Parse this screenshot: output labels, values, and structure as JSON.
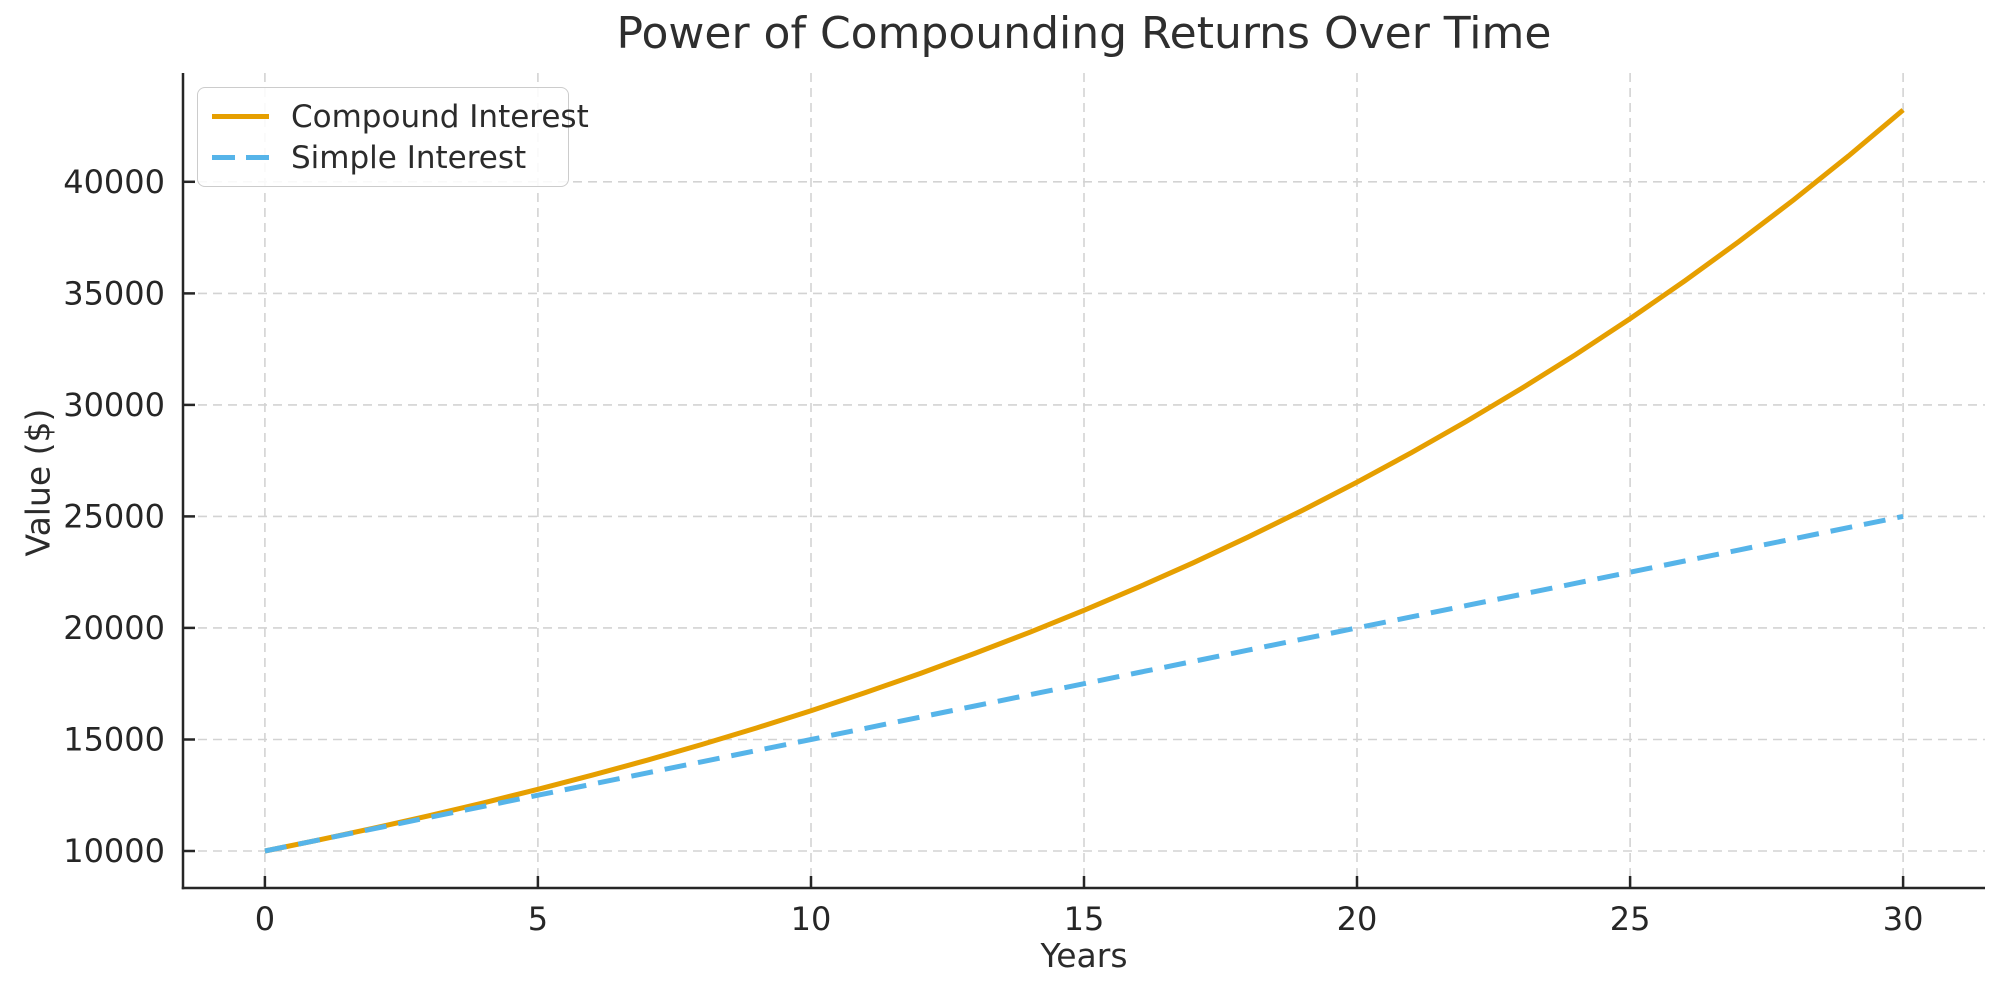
{
  "chart_data": {
    "type": "line",
    "title": "Power of Compounding Returns Over Time",
    "xlabel": "Years",
    "ylabel": "Value ($)",
    "x": [
      0,
      1,
      2,
      3,
      4,
      5,
      6,
      7,
      8,
      9,
      10,
      11,
      12,
      13,
      14,
      15,
      16,
      17,
      18,
      19,
      20,
      21,
      22,
      23,
      24,
      25,
      26,
      27,
      28,
      29,
      30
    ],
    "series": [
      {
        "name": "Compound Interest",
        "color": "#E69F00",
        "line_style": "solid",
        "values": [
          10000,
          10500,
          11025,
          11576,
          12155,
          12763,
          13401,
          14071,
          14775,
          15513,
          16289,
          17103,
          17959,
          18856,
          19799,
          20789,
          21829,
          22920,
          24066,
          25270,
          26533,
          27860,
          29253,
          30715,
          32250,
          33864,
          35558,
          37336,
          39201,
          41159,
          43219
        ]
      },
      {
        "name": "Simple Interest",
        "color": "#56B4E9",
        "line_style": "dashed",
        "values": [
          10000,
          10500,
          11000,
          11500,
          12000,
          12500,
          13000,
          13500,
          14000,
          14500,
          15000,
          15500,
          16000,
          16500,
          17000,
          17500,
          18000,
          18500,
          19000,
          19500,
          20000,
          20500,
          21000,
          21500,
          22000,
          22500,
          23000,
          23500,
          24000,
          24500,
          25000
        ]
      }
    ],
    "xticks": [
      0,
      5,
      10,
      15,
      20,
      25,
      30
    ],
    "yticks": [
      10000,
      15000,
      20000,
      25000,
      30000,
      35000,
      40000
    ],
    "xlim": [
      -1.5,
      31.5
    ],
    "ylim": [
      8340,
      44880
    ],
    "grid": true,
    "grid_style": "dashed",
    "legend_position": "upper left"
  },
  "style": {
    "grid_color": "#d3d3d3",
    "spine_color": "#262626",
    "tick_label_color": "#262626",
    "text_color": "#2b2b2b",
    "background": "#ffffff"
  }
}
